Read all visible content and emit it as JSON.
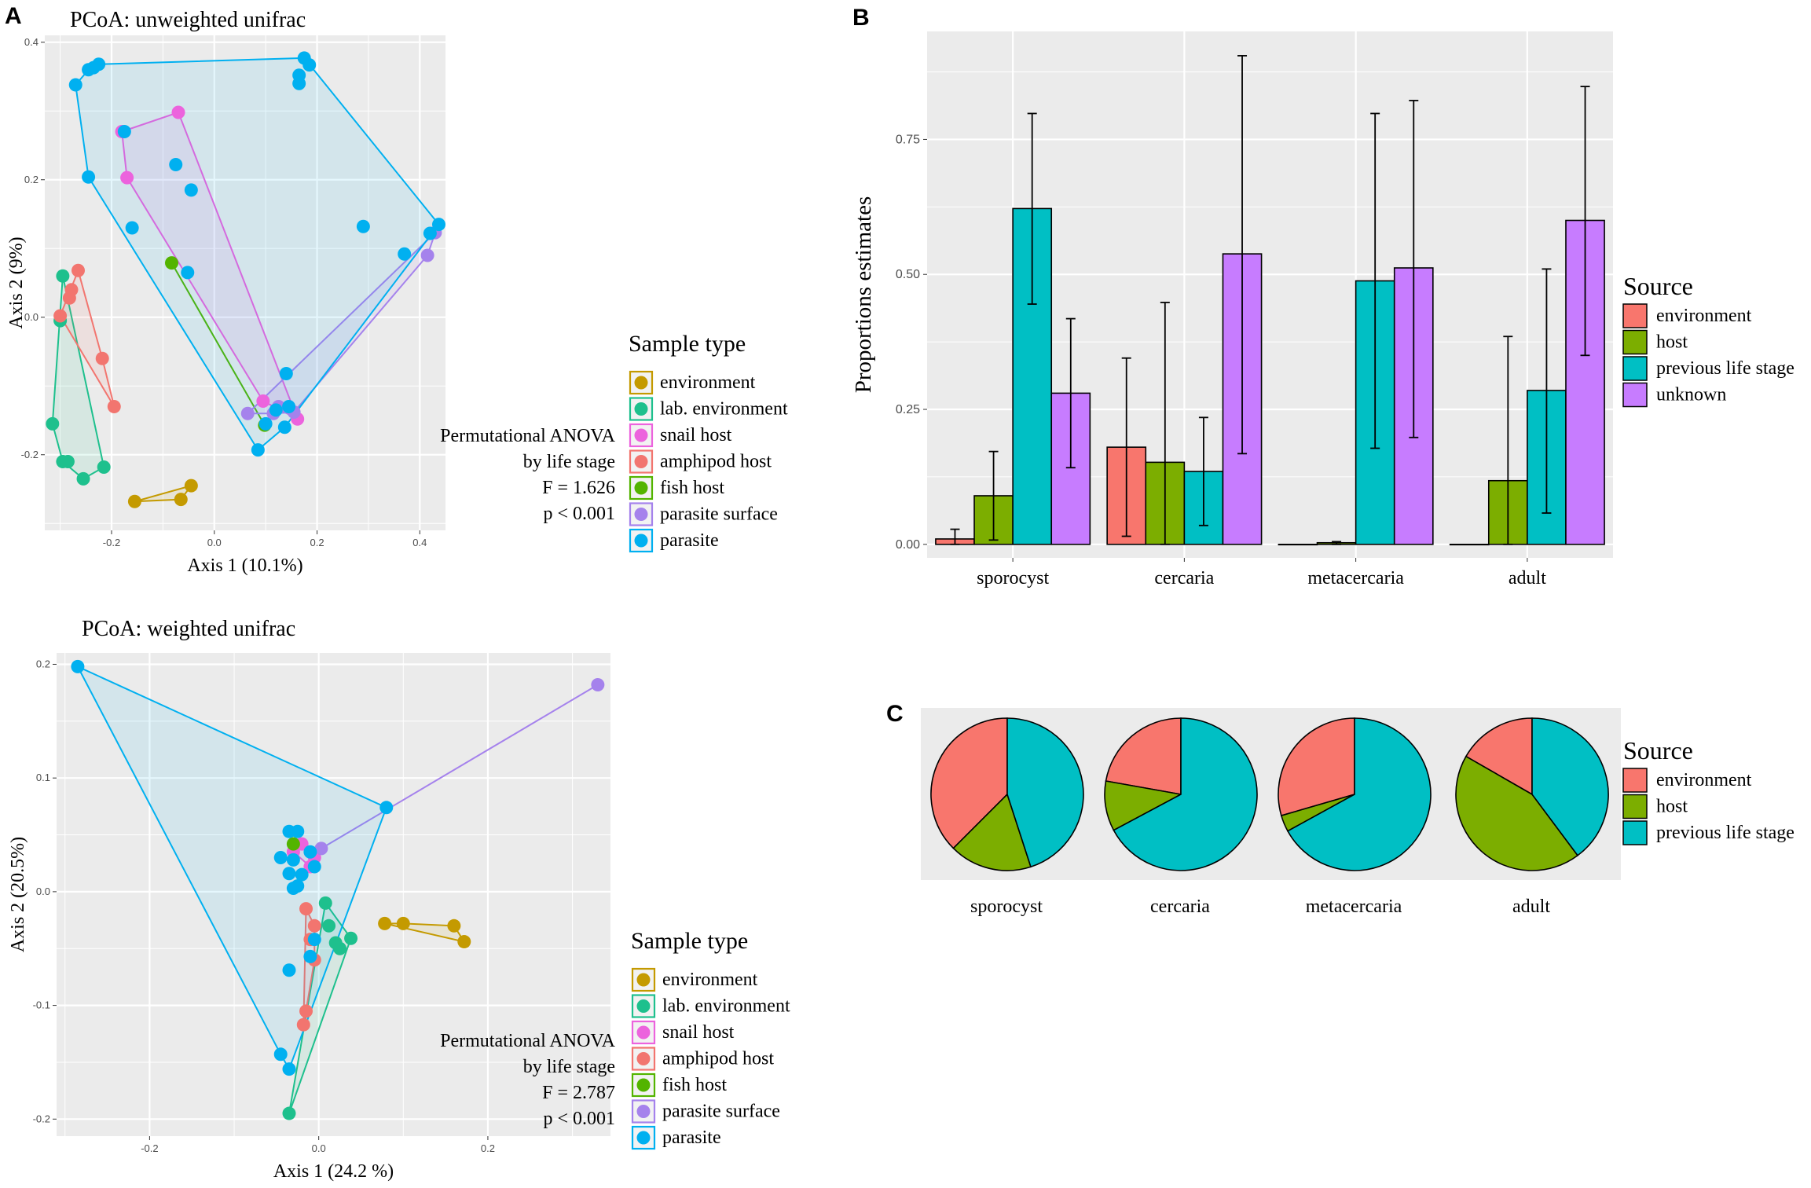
{
  "panel_labels": {
    "a": "A",
    "b": "B",
    "c": "C"
  },
  "colors": {
    "panel_bg": "#ebebeb",
    "grid": "#ffffff",
    "environment": "#c49a00",
    "lab_environment": "#1ec08d",
    "snail_host": "#ec63dd",
    "amphipod_host": "#f2756f",
    "fish_host": "#53b400",
    "parasite_surface": "#a582ec",
    "parasite": "#00b0f0",
    "src_environment": "#f8766d",
    "src_host": "#7cae00",
    "src_previous": "#00bfc4",
    "src_unknown": "#c77cff"
  },
  "chart_data": [
    {
      "id": "pcoa_unweighted",
      "type": "scatter",
      "title": "PCoA: unweighted unifrac",
      "xlabel": "Axis 1 (10.1%)",
      "ylabel": "Axis 2 (9%)",
      "xlim": [
        -0.33,
        0.45
      ],
      "ylim": [
        -0.31,
        0.41
      ],
      "xticks": [
        -0.2,
        0.0,
        0.2,
        0.4
      ],
      "yticks": [
        -0.2,
        0.0,
        0.2,
        0.4
      ],
      "xtick_labels": [
        "-0.2",
        "0.0",
        "0.2",
        "0.4"
      ],
      "ytick_labels": [
        "-0.2",
        "0.0",
        "0.2",
        "0.4"
      ],
      "legend_title": "Sample type",
      "annotation": [
        "Permutational ANOVA",
        "by life stage",
        "F = 1.626",
        "p < 0.001"
      ],
      "series": [
        {
          "key": "environment",
          "name": "environment",
          "points": [
            [
              -0.155,
              -0.268
            ],
            [
              -0.065,
              -0.265
            ],
            [
              -0.045,
              -0.245
            ]
          ]
        },
        {
          "key": "lab_environment",
          "name": "lab. environment",
          "points": [
            [
              -0.295,
              0.06
            ],
            [
              -0.3,
              -0.005
            ],
            [
              -0.315,
              -0.155
            ],
            [
              -0.295,
              -0.21
            ],
            [
              -0.285,
              -0.21
            ],
            [
              -0.255,
              -0.235
            ],
            [
              -0.215,
              -0.218
            ]
          ]
        },
        {
          "key": "snail_host",
          "name": "snail host",
          "points": [
            [
              -0.18,
              0.27
            ],
            [
              -0.07,
              0.298
            ],
            [
              -0.17,
              0.203
            ],
            [
              0.095,
              -0.122
            ],
            [
              0.162,
              -0.148
            ]
          ]
        },
        {
          "key": "amphipod_host",
          "name": "amphipod host",
          "points": [
            [
              -0.265,
              0.068
            ],
            [
              -0.278,
              0.04
            ],
            [
              -0.282,
              0.028
            ],
            [
              -0.3,
              0.002
            ],
            [
              -0.218,
              -0.06
            ],
            [
              -0.195,
              -0.13
            ]
          ]
        },
        {
          "key": "fish_host",
          "name": "fish host",
          "points": [
            [
              -0.083,
              0.079
            ],
            [
              0.098,
              -0.157
            ]
          ]
        },
        {
          "key": "parasite_surface",
          "name": "parasite surface",
          "points": [
            [
              0.065,
              -0.14
            ],
            [
              0.115,
              -0.14
            ],
            [
              0.125,
              -0.13
            ],
            [
              0.155,
              -0.138
            ],
            [
              0.415,
              0.09
            ],
            [
              0.43,
              0.123
            ]
          ]
        },
        {
          "key": "parasite",
          "name": "parasite",
          "points": [
            [
              -0.27,
              0.338
            ],
            [
              -0.245,
              0.36
            ],
            [
              -0.235,
              0.363
            ],
            [
              -0.225,
              0.368
            ],
            [
              -0.175,
              0.27
            ],
            [
              -0.245,
              0.204
            ],
            [
              -0.16,
              0.13
            ],
            [
              -0.075,
              0.222
            ],
            [
              -0.045,
              0.185
            ],
            [
              -0.052,
              0.065
            ],
            [
              0.175,
              0.377
            ],
            [
              0.185,
              0.367
            ],
            [
              0.165,
              0.352
            ],
            [
              0.165,
              0.34
            ],
            [
              0.29,
              0.132
            ],
            [
              0.37,
              0.092
            ],
            [
              0.42,
              0.122
            ],
            [
              0.437,
              0.135
            ],
            [
              0.14,
              -0.082
            ],
            [
              0.085,
              -0.193
            ],
            [
              0.1,
              -0.155
            ],
            [
              0.12,
              -0.135
            ],
            [
              0.137,
              -0.16
            ],
            [
              0.145,
              -0.13
            ]
          ]
        }
      ]
    },
    {
      "id": "pcoa_weighted",
      "type": "scatter",
      "title": "PCoA: weighted unifrac",
      "xlabel": "Axis 1 (24.2 %)",
      "ylabel": "Axis 2 (20.5%)",
      "xlim": [
        -0.31,
        0.345
      ],
      "ylim": [
        -0.215,
        0.21
      ],
      "xticks": [
        -0.2,
        0.0,
        0.2
      ],
      "yticks": [
        -0.2,
        -0.1,
        0.0,
        0.1,
        0.2
      ],
      "xtick_labels": [
        "-0.2",
        "0.0",
        "0.2"
      ],
      "ytick_labels": [
        "-0.2",
        "-0.1",
        "0.0",
        "0.1",
        "0.2"
      ],
      "legend_title": "Sample type",
      "annotation": [
        "Permutational ANOVA",
        "by life stage",
        "F = 2.787",
        "p < 0.001"
      ],
      "series": [
        {
          "key": "environment",
          "name": "environment",
          "points": [
            [
              0.078,
              -0.028
            ],
            [
              0.1,
              -0.028
            ],
            [
              0.16,
              -0.03
            ],
            [
              0.172,
              -0.044
            ]
          ]
        },
        {
          "key": "lab_environment",
          "name": "lab. environment",
          "points": [
            [
              0.008,
              -0.01
            ],
            [
              0.012,
              -0.03
            ],
            [
              0.02,
              -0.045
            ],
            [
              0.025,
              -0.05
            ],
            [
              0.038,
              -0.041
            ],
            [
              -0.035,
              -0.195
            ]
          ]
        },
        {
          "key": "snail_host",
          "name": "snail host",
          "points": [
            [
              -0.02,
              0.042
            ],
            [
              -0.03,
              0.035
            ],
            [
              -0.005,
              0.03
            ],
            [
              -0.01,
              0.022
            ]
          ]
        },
        {
          "key": "amphipod_host",
          "name": "amphipod host",
          "points": [
            [
              -0.015,
              -0.015
            ],
            [
              -0.005,
              -0.03
            ],
            [
              -0.01,
              -0.042
            ],
            [
              -0.005,
              -0.06
            ],
            [
              -0.015,
              -0.105
            ],
            [
              -0.018,
              -0.117
            ]
          ]
        },
        {
          "key": "fish_host",
          "name": "fish host",
          "points": [
            [
              -0.03,
              0.042
            ]
          ]
        },
        {
          "key": "parasite_surface",
          "name": "parasite surface",
          "points": [
            [
              0.003,
              0.038
            ],
            [
              0.33,
              0.182
            ]
          ]
        },
        {
          "key": "parasite",
          "name": "parasite",
          "points": [
            [
              -0.285,
              0.198
            ],
            [
              0.08,
              0.074
            ],
            [
              -0.035,
              0.053
            ],
            [
              -0.025,
              0.053
            ],
            [
              -0.045,
              0.03
            ],
            [
              -0.03,
              0.028
            ],
            [
              -0.01,
              0.035
            ],
            [
              -0.005,
              0.022
            ],
            [
              -0.02,
              0.015
            ],
            [
              -0.035,
              0.016
            ],
            [
              -0.025,
              0.005
            ],
            [
              -0.03,
              0.003
            ],
            [
              -0.005,
              -0.042
            ],
            [
              -0.01,
              -0.057
            ],
            [
              -0.035,
              -0.069
            ],
            [
              -0.045,
              -0.143
            ],
            [
              -0.035,
              -0.156
            ]
          ]
        }
      ]
    },
    {
      "id": "proportions",
      "type": "bar",
      "xlabel": "",
      "ylabel": "Proportions estimates",
      "ylim": [
        -0.025,
        0.95
      ],
      "yticks": [
        0.0,
        0.25,
        0.5,
        0.75
      ],
      "ytick_labels": [
        "0.00",
        "0.25",
        "0.50",
        "0.75"
      ],
      "categories": [
        "sporocyst",
        "cercaria",
        "metacercaria",
        "adult"
      ],
      "legend_title": "Source",
      "series": [
        {
          "key": "src_environment",
          "name": "environment",
          "values": [
            0.01,
            0.18,
            0.0,
            0.0
          ],
          "err_low": [
            0.0,
            0.015,
            0.0,
            0.0
          ],
          "err_high": [
            0.028,
            0.345,
            0.0,
            0.0
          ]
        },
        {
          "key": "src_host",
          "name": "host",
          "values": [
            0.09,
            0.152,
            0.003,
            0.118
          ],
          "err_low": [
            0.008,
            0.0,
            0.0,
            0.0
          ],
          "err_high": [
            0.172,
            0.448,
            0.005,
            0.385
          ]
        },
        {
          "key": "src_previous",
          "name": "previous life stage",
          "values": [
            0.622,
            0.135,
            0.488,
            0.285
          ],
          "err_low": [
            0.445,
            0.035,
            0.178,
            0.058
          ],
          "err_high": [
            0.798,
            0.235,
            0.798,
            0.51
          ]
        },
        {
          "key": "src_unknown",
          "name": "unknown",
          "values": [
            0.28,
            0.538,
            0.512,
            0.6
          ],
          "err_low": [
            0.142,
            0.168,
            0.198,
            0.35
          ],
          "err_high": [
            0.418,
            0.905,
            0.822,
            0.848
          ]
        }
      ]
    },
    {
      "id": "pies",
      "type": "pie",
      "categories": [
        "sporocyst",
        "cercaria",
        "metacercaria",
        "adult"
      ],
      "legend_title": "Source",
      "series": [
        {
          "key": "src_environment",
          "name": "environment",
          "values": [
            0.375,
            0.222,
            0.295,
            0.167
          ]
        },
        {
          "key": "src_host",
          "name": "host",
          "values": [
            0.175,
            0.106,
            0.035,
            0.435
          ]
        },
        {
          "key": "src_previous",
          "name": "previous life stage",
          "values": [
            0.45,
            0.672,
            0.67,
            0.398
          ]
        }
      ]
    }
  ]
}
